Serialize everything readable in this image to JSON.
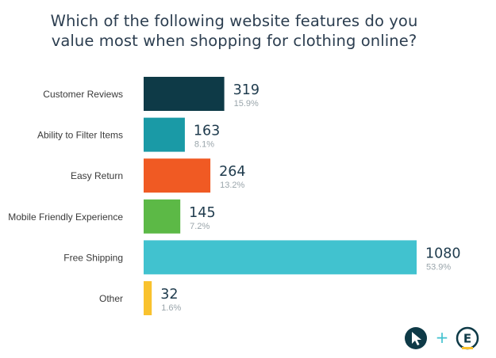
{
  "title_lines": [
    "Which of the following website features do you",
    "value most when shopping for clothing online?"
  ],
  "colors": {
    "text_dark": "#1f3b4d",
    "text_muted": "#9aa5ab",
    "label": "#3a3a3a"
  },
  "logo": {
    "plus": "+",
    "letter": "E",
    "icons": [
      "cursor-icon",
      "e-circle-icon"
    ]
  },
  "chart_data": {
    "type": "bar",
    "orientation": "horizontal",
    "categories": [
      "Customer Reviews",
      "Ability to Filter Items",
      "Easy Return",
      "Mobile Friendly Experience",
      "Free Shipping",
      "Other"
    ],
    "values": [
      319,
      163,
      264,
      145,
      1080,
      32
    ],
    "value_labels": [
      "319",
      "163",
      "264",
      "145",
      "1080",
      "32"
    ],
    "percent_labels": [
      "15.9%",
      "8.1%",
      "13.2%",
      "7.2%",
      "53.9%",
      "1.6%"
    ],
    "bar_colors": [
      "#0e3a47",
      "#1a9aa6",
      "#f05a23",
      "#5cb946",
      "#41c2cf",
      "#f9c22e"
    ],
    "xlim": [
      0,
      1080
    ],
    "grid": false,
    "legend": "none"
  }
}
